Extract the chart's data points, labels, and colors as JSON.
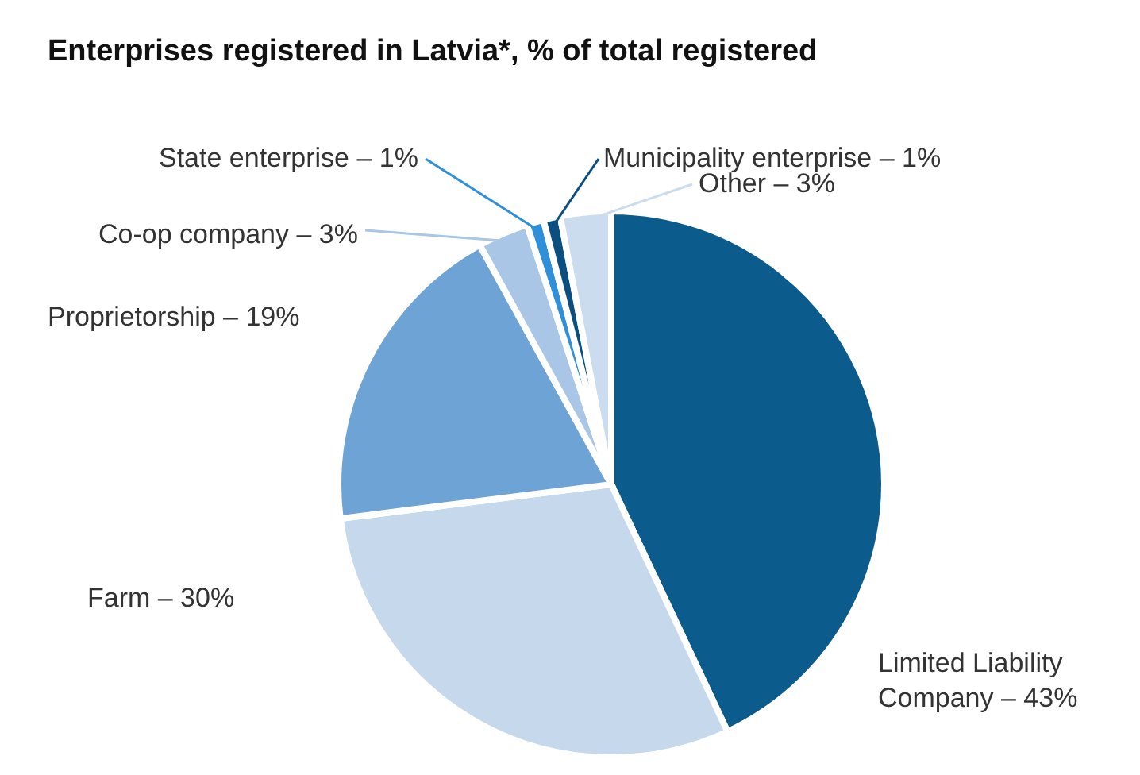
{
  "chart_data": {
    "type": "pie",
    "title": "Enterprises registered in Latvia*, % of total registered",
    "categories": [
      "Limited Liability Company",
      "Farm",
      "Proprietorship",
      "Co-op company",
      "State enterprise",
      "Municipality enterprise",
      "Other"
    ],
    "values": [
      43,
      30,
      19,
      3,
      1,
      1,
      3
    ],
    "value_labels": [
      "43%",
      "30%",
      "19%",
      "3%",
      "1%",
      "1%",
      "3%"
    ],
    "colors": [
      "#0b5b8c",
      "#c6d9ec",
      "#6ea3d6",
      "#a9c6e6",
      "#2f8fd8",
      "#0a4f80",
      "#cbdcee"
    ],
    "legend": false
  }
}
